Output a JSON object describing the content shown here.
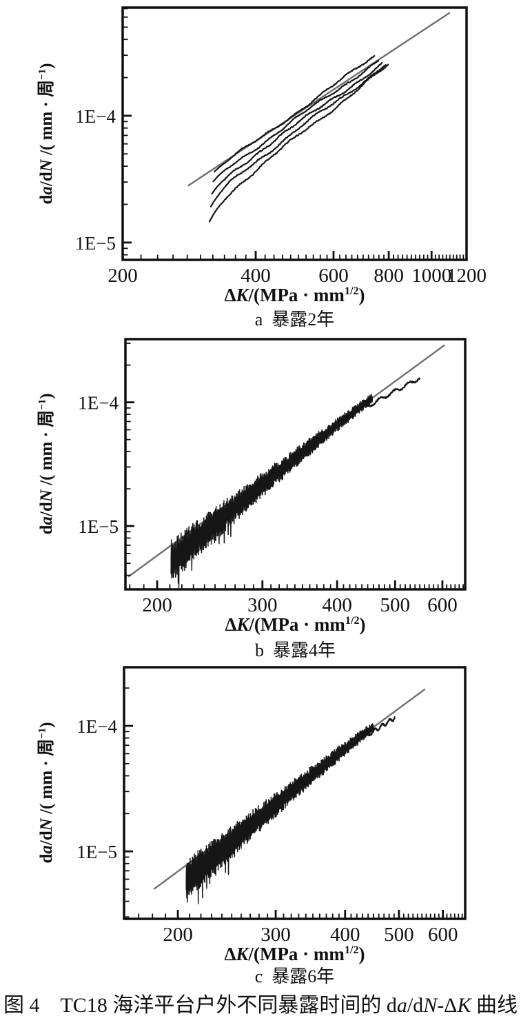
{
  "figure": {
    "title_segments": [
      {
        "t": "图 4　TC18 海洋平台户外不同暴露时间的 d",
        "style": "normal"
      },
      {
        "t": "a",
        "style": "italic"
      },
      {
        "t": "/d",
        "style": "normal"
      },
      {
        "t": "N",
        "style": "italic"
      },
      {
        "t": "-Δ",
        "style": "normal"
      },
      {
        "t": "K",
        "style": "italic"
      },
      {
        "t": " 曲线",
        "style": "normal"
      }
    ]
  },
  "axis_labels": {
    "x": [
      {
        "t": "Δ",
        "style": "normal"
      },
      {
        "t": "K",
        "style": "italic"
      },
      {
        "t": "/(MPa · mm",
        "style": "normal"
      },
      {
        "t": "1/2",
        "style": "sup"
      },
      {
        "t": ")",
        "style": "normal"
      }
    ],
    "y": [
      {
        "t": "d",
        "style": "normal"
      },
      {
        "t": "a",
        "style": "italic"
      },
      {
        "t": "/d",
        "style": "normal"
      },
      {
        "t": "N",
        "style": "italic"
      },
      {
        "t": " /( mm · 周",
        "style": "normal"
      },
      {
        "t": "−1",
        "style": "sup"
      },
      {
        "t": ")",
        "style": "normal"
      }
    ]
  },
  "colors": {
    "curve": "#161616",
    "fit": "#6e6e6e",
    "frame": "#0f0f0f",
    "text": "#111111",
    "background": "#ffffff"
  },
  "chart_data": [
    {
      "id": "a",
      "type": "line",
      "caption_letter": "a",
      "caption_text": "暴露2年",
      "xlabel": "ΔK/(MPa·mm^1/2)",
      "ylabel": "da/dN/(mm·周^-1)",
      "x_scale": "log",
      "y_scale": "log",
      "x_range": [
        200,
        1200
      ],
      "y_range": [
        7.3e-06,
        0.000713
      ],
      "x_ticks": [
        {
          "v": 200,
          "label": "200"
        },
        {
          "v": 400,
          "label": "400"
        },
        {
          "v": 600,
          "label": "600"
        },
        {
          "v": 800,
          "label": "800"
        },
        {
          "v": 1000,
          "label": "1000"
        },
        {
          "v": 1200,
          "label": "1200"
        }
      ],
      "x_minor": [
        220,
        240,
        260,
        280,
        300,
        320,
        340,
        360,
        380,
        420,
        440,
        460,
        480,
        500,
        520,
        540,
        560,
        580,
        620,
        640,
        660,
        680,
        700,
        720,
        740,
        760,
        780,
        820,
        840,
        860,
        880,
        900,
        920,
        940,
        960,
        980,
        1020,
        1040,
        1060,
        1080,
        1100,
        1120,
        1140,
        1160,
        1180
      ],
      "y_ticks": [
        {
          "v": 0.0001,
          "label": "1E−4"
        },
        {
          "v": 1e-05,
          "label": "1E−5"
        }
      ],
      "frame": [
        178,
        11,
        677,
        377
      ],
      "fit_line": {
        "x1": 281,
        "y1": 2.8e-05,
        "x2": 1100,
        "y2": 0.00065
      },
      "curves": [
        {
          "xs": 322,
          "ys": 3.6e-05,
          "xe": 745,
          "ye": 0.000295,
          "m": 2.48,
          "lam": 0.015,
          "w": 0.012,
          "f1": 9,
          "f2": 38,
          "p1": 0.4,
          "p2": 1.2,
          "j": 0.007,
          "seed": 11
        },
        {
          "xs": 320,
          "ys": 3e-05,
          "xe": 760,
          "ye": 0.000275,
          "m": 2.48,
          "lam": 0.02,
          "w": 0.012,
          "f1": 11,
          "f2": 41,
          "p1": 1.6,
          "p2": 0.3,
          "j": 0.007,
          "seed": 22
        },
        {
          "xs": 318,
          "ys": 2.4e-05,
          "xe": 775,
          "ye": 0.00026,
          "m": 2.49,
          "lam": 0.025,
          "w": 0.013,
          "f1": 10,
          "f2": 44,
          "p1": 2.5,
          "p2": 2.1,
          "j": 0.008,
          "seed": 33
        },
        {
          "xs": 316,
          "ys": 1.9e-05,
          "xe": 790,
          "ye": 0.000255,
          "m": 2.58,
          "lam": 0.03,
          "w": 0.013,
          "f1": 12,
          "f2": 40,
          "p1": 0.9,
          "p2": 3.0,
          "j": 0.008,
          "seed": 44
        },
        {
          "xs": 314,
          "ys": 1.45e-05,
          "xe": 800,
          "ye": 0.00025,
          "m": 2.72,
          "lam": 0.035,
          "w": 0.012,
          "f1": 13,
          "f2": 43,
          "p1": 2.0,
          "p2": 1.0,
          "j": 0.008,
          "seed": 55
        }
      ],
      "band": null,
      "tail": null
    },
    {
      "id": "b",
      "type": "line",
      "caption_letter": "b",
      "caption_text": "暴露4年",
      "xlabel": "ΔK/(MPa·mm^1/2)",
      "ylabel": "da/dN/(mm·周^-1)",
      "x_scale": "log",
      "y_scale": "log",
      "x_range": [
        177,
        655
      ],
      "y_range": [
        3.08e-06,
        0.000324
      ],
      "x_ticks": [
        {
          "v": 200,
          "label": "200"
        },
        {
          "v": 300,
          "label": "300"
        },
        {
          "v": 400,
          "label": "400"
        },
        {
          "v": 500,
          "label": "500"
        },
        {
          "v": 600,
          "label": "600"
        }
      ],
      "x_minor": [
        180,
        190,
        210,
        220,
        230,
        240,
        250,
        260,
        270,
        280,
        290,
        310,
        320,
        330,
        340,
        350,
        360,
        370,
        380,
        390,
        410,
        420,
        430,
        440,
        450,
        460,
        470,
        480,
        490,
        510,
        520,
        530,
        540,
        550,
        560,
        570,
        580,
        590,
        610,
        620,
        630,
        640,
        650
      ],
      "y_ticks": [
        {
          "v": 0.0001,
          "label": "1E−4"
        },
        {
          "v": 1e-05,
          "label": "1E−5"
        }
      ],
      "frame": [
        182,
        12,
        675,
        375
      ],
      "fit_line": {
        "x1": 179,
        "y1": 3.9e-06,
        "x2": 605,
        "y2": 0.00029
      },
      "curves": [],
      "band": {
        "x1": 211,
        "x2": 458,
        "amp0": 0.18,
        "amp1": 0.045,
        "center0": -0.13,
        "seed": 7,
        "n": 620
      },
      "tail": {
        "x1": 445,
        "x2": 550,
        "off1": 0.04,
        "off2": 0.12,
        "wig": 0.013,
        "seed": 5,
        "y_end": 0.00015
      }
    },
    {
      "id": "c",
      "type": "line",
      "caption_letter": "c",
      "caption_text": "暴露6年",
      "xlabel": "ΔK/(MPa·mm^1/2)",
      "ylabel": "da/dN/(mm·周^-1)",
      "x_scale": "log",
      "y_scale": "log",
      "x_range": [
        160,
        658
      ],
      "y_range": [
        2.9e-06,
        0.000293
      ],
      "x_ticks": [
        {
          "v": 200,
          "label": "200"
        },
        {
          "v": 300,
          "label": "300"
        },
        {
          "v": 400,
          "label": "400"
        },
        {
          "v": 500,
          "label": "500"
        },
        {
          "v": 600,
          "label": "600"
        }
      ],
      "x_minor": [
        170,
        180,
        190,
        210,
        220,
        230,
        240,
        250,
        260,
        270,
        280,
        290,
        310,
        320,
        330,
        340,
        350,
        360,
        370,
        380,
        390,
        410,
        420,
        430,
        440,
        450,
        460,
        470,
        480,
        490,
        510,
        520,
        530,
        540,
        550,
        560,
        570,
        580,
        590,
        610,
        620,
        630,
        640,
        650
      ],
      "y_ticks": [
        {
          "v": 0.0001,
          "label": "1E−4"
        },
        {
          "v": 1e-05,
          "label": "1E−5"
        }
      ],
      "frame": [
        180,
        8,
        675,
        373
      ],
      "fit_line": {
        "x1": 181,
        "y1": 5e-06,
        "x2": 557,
        "y2": 0.000196
      },
      "curves": [],
      "band": {
        "x1": 207,
        "x2": 450,
        "amp0": 0.17,
        "amp1": 0.05,
        "center0": -0.12,
        "seed": 9,
        "n": 620
      },
      "tail": {
        "x1": 438,
        "x2": 492,
        "off1": 0.03,
        "off2": 0.05,
        "wig": 0.014,
        "seed": 6,
        "y_end": 0.000113
      }
    }
  ]
}
